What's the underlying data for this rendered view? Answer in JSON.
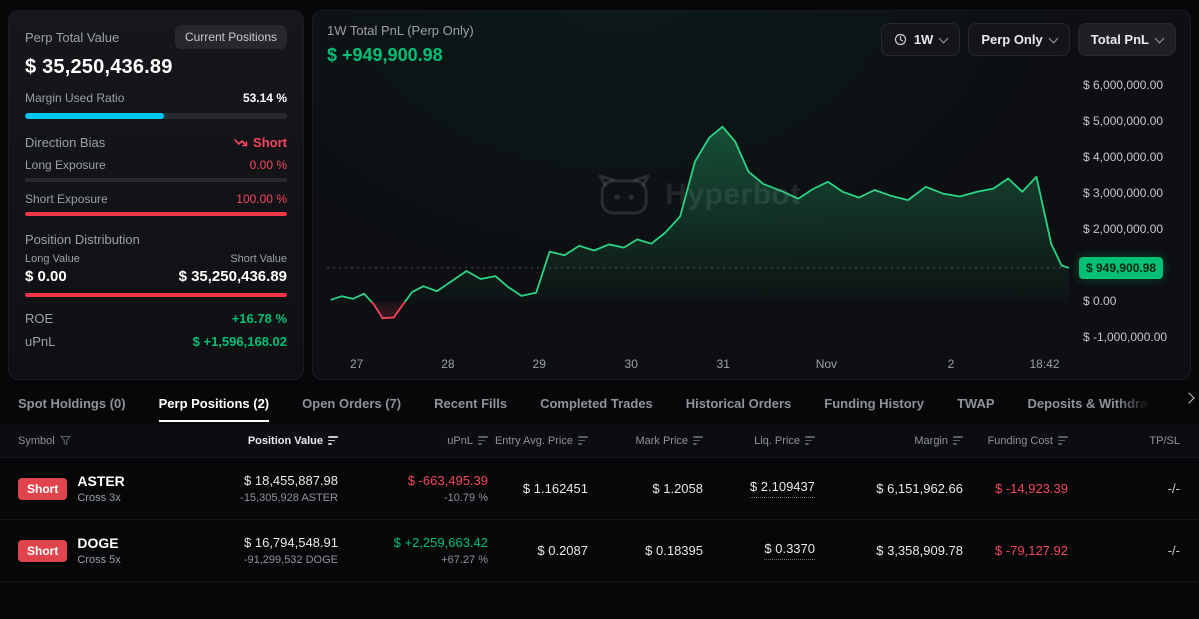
{
  "left_panel": {
    "title": "Perp Total Value",
    "badge": "Current Positions",
    "total_value": "$ 35,250,436.89",
    "margin_used_label": "Margin Used Ratio",
    "margin_used_value": "53.14 %",
    "margin_used_pct": 53.14,
    "direction_bias_label": "Direction Bias",
    "direction_bias_value": "Short",
    "long_exposure_label": "Long Exposure",
    "long_exposure_value": "0.00 %",
    "long_exposure_pct": 0,
    "short_exposure_label": "Short Exposure",
    "short_exposure_value": "100.00 %",
    "short_exposure_pct": 100,
    "position_distribution_label": "Position Distribution",
    "long_value_label": "Long Value",
    "short_value_label": "Short Value",
    "long_value": "$ 0.00",
    "short_value": "$ 35,250,436.89",
    "distribution_short_pct": 100,
    "roe_label": "ROE",
    "roe_value": "+16.78 %",
    "upnl_label": "uPnL",
    "upnl_value": "$ +1,596,168.02"
  },
  "chart_panel": {
    "title": "1W Total PnL (Perp Only)",
    "value": "$ +949,900.98",
    "timeframe_button": "1W",
    "scope_button": "Perp Only",
    "metric_button": "Total PnL",
    "watermark": "Hyperbot",
    "current_value_badge": "$ 949,900.98"
  },
  "chart_data": {
    "type": "area",
    "title": "1W Total PnL (Perp Only)",
    "unit": "USD",
    "current_value": 949900.98,
    "ylim": [
      -1390000,
      6530000
    ],
    "legend": "none",
    "grid": "off",
    "colors": {
      "positive": "#2bd483",
      "negative": "#f6465d"
    },
    "y_ticks": [
      {
        "label": "$ 6,000,000.00",
        "value": 6000000
      },
      {
        "label": "$ 5,000,000.00",
        "value": 5000000
      },
      {
        "label": "$ 4,000,000.00",
        "value": 4000000
      },
      {
        "label": "$ 3,000,000.00",
        "value": 3000000
      },
      {
        "label": "$ 2,000,000.00",
        "value": 2000000
      },
      {
        "label": "$ 0.00",
        "value": 0
      },
      {
        "label": "$ -1,000,000.00",
        "value": -1000000
      }
    ],
    "x_ticks": [
      {
        "label": "27",
        "pos": 0.04
      },
      {
        "label": "28",
        "pos": 0.163
      },
      {
        "label": "29",
        "pos": 0.286
      },
      {
        "label": "30",
        "pos": 0.41
      },
      {
        "label": "31",
        "pos": 0.534
      },
      {
        "label": "Nov",
        "pos": 0.673
      },
      {
        "label": "2",
        "pos": 0.841
      },
      {
        "label": "18:42",
        "pos": 0.967
      }
    ],
    "points": [
      [
        0.005,
        60000
      ],
      [
        0.02,
        160000
      ],
      [
        0.035,
        90000
      ],
      [
        0.05,
        230000
      ],
      [
        0.063,
        -60000
      ],
      [
        0.075,
        -450000
      ],
      [
        0.09,
        -430000
      ],
      [
        0.102,
        -80000
      ],
      [
        0.115,
        280000
      ],
      [
        0.13,
        440000
      ],
      [
        0.148,
        300000
      ],
      [
        0.168,
        580000
      ],
      [
        0.188,
        860000
      ],
      [
        0.207,
        640000
      ],
      [
        0.227,
        720000
      ],
      [
        0.244,
        420000
      ],
      [
        0.262,
        170000
      ],
      [
        0.282,
        260000
      ],
      [
        0.3,
        1400000
      ],
      [
        0.32,
        1300000
      ],
      [
        0.34,
        1560000
      ],
      [
        0.36,
        1430000
      ],
      [
        0.38,
        1600000
      ],
      [
        0.4,
        1510000
      ],
      [
        0.418,
        1740000
      ],
      [
        0.437,
        1620000
      ],
      [
        0.456,
        1930000
      ],
      [
        0.476,
        2380000
      ],
      [
        0.496,
        3900000
      ],
      [
        0.515,
        4560000
      ],
      [
        0.533,
        4870000
      ],
      [
        0.55,
        4460000
      ],
      [
        0.568,
        3620000
      ],
      [
        0.588,
        3280000
      ],
      [
        0.615,
        3060000
      ],
      [
        0.635,
        2870000
      ],
      [
        0.655,
        3140000
      ],
      [
        0.675,
        3340000
      ],
      [
        0.695,
        3060000
      ],
      [
        0.717,
        2900000
      ],
      [
        0.738,
        3110000
      ],
      [
        0.76,
        2950000
      ],
      [
        0.783,
        2830000
      ],
      [
        0.807,
        3200000
      ],
      [
        0.83,
        3010000
      ],
      [
        0.853,
        2930000
      ],
      [
        0.876,
        3060000
      ],
      [
        0.898,
        3150000
      ],
      [
        0.918,
        3430000
      ],
      [
        0.937,
        3060000
      ],
      [
        0.956,
        3480000
      ],
      [
        0.976,
        1620000
      ],
      [
        0.99,
        1010000
      ],
      [
        1.0,
        949900.98
      ]
    ]
  },
  "tabs": {
    "items": [
      {
        "label": "Spot Holdings (0)"
      },
      {
        "label": "Perp Positions (2)"
      },
      {
        "label": "Open Orders (7)"
      },
      {
        "label": "Recent Fills"
      },
      {
        "label": "Completed Trades"
      },
      {
        "label": "Historical Orders"
      },
      {
        "label": "Funding History"
      },
      {
        "label": "TWAP"
      },
      {
        "label": "Deposits & Withdrawals"
      }
    ]
  },
  "table": {
    "columns": [
      {
        "label": "Symbol"
      },
      {
        "label": "Position Value"
      },
      {
        "label": "uPnL"
      },
      {
        "label": "Entry Avg. Price"
      },
      {
        "label": "Mark Price"
      },
      {
        "label": "Liq. Price"
      },
      {
        "label": "Margin"
      },
      {
        "label": "Funding Cost"
      },
      {
        "label": "TP/SL"
      }
    ],
    "rows": [
      {
        "side": "Short",
        "symbol": "ASTER",
        "mode": "Cross 3x",
        "position_value": "$ 18,455,887.98",
        "position_size": "-15,305,928 ASTER",
        "upnl": "$ -663,495.39",
        "upnl_pct": "-10.79 %",
        "entry_price": "$ 1.162451",
        "mark_price": "$ 1.2058",
        "liq_price": "$ 2.109437",
        "margin": "$ 6,151,962.66",
        "funding_cost": "$ -14,923.39",
        "tp_sl": "-/-"
      },
      {
        "side": "Short",
        "symbol": "DOGE",
        "mode": "Cross 5x",
        "position_value": "$ 16,794,548.91",
        "position_size": "-91,299,532 DOGE",
        "upnl": "$ +2,259,663.42",
        "upnl_pct": "+67.27 %",
        "entry_price": "$ 0.2087",
        "mark_price": "$ 0.18395",
        "liq_price": "$ 0.3370",
        "margin": "$ 3,358,909.78",
        "funding_cost": "$ -79,127.92",
        "tp_sl": "-/-"
      }
    ]
  }
}
